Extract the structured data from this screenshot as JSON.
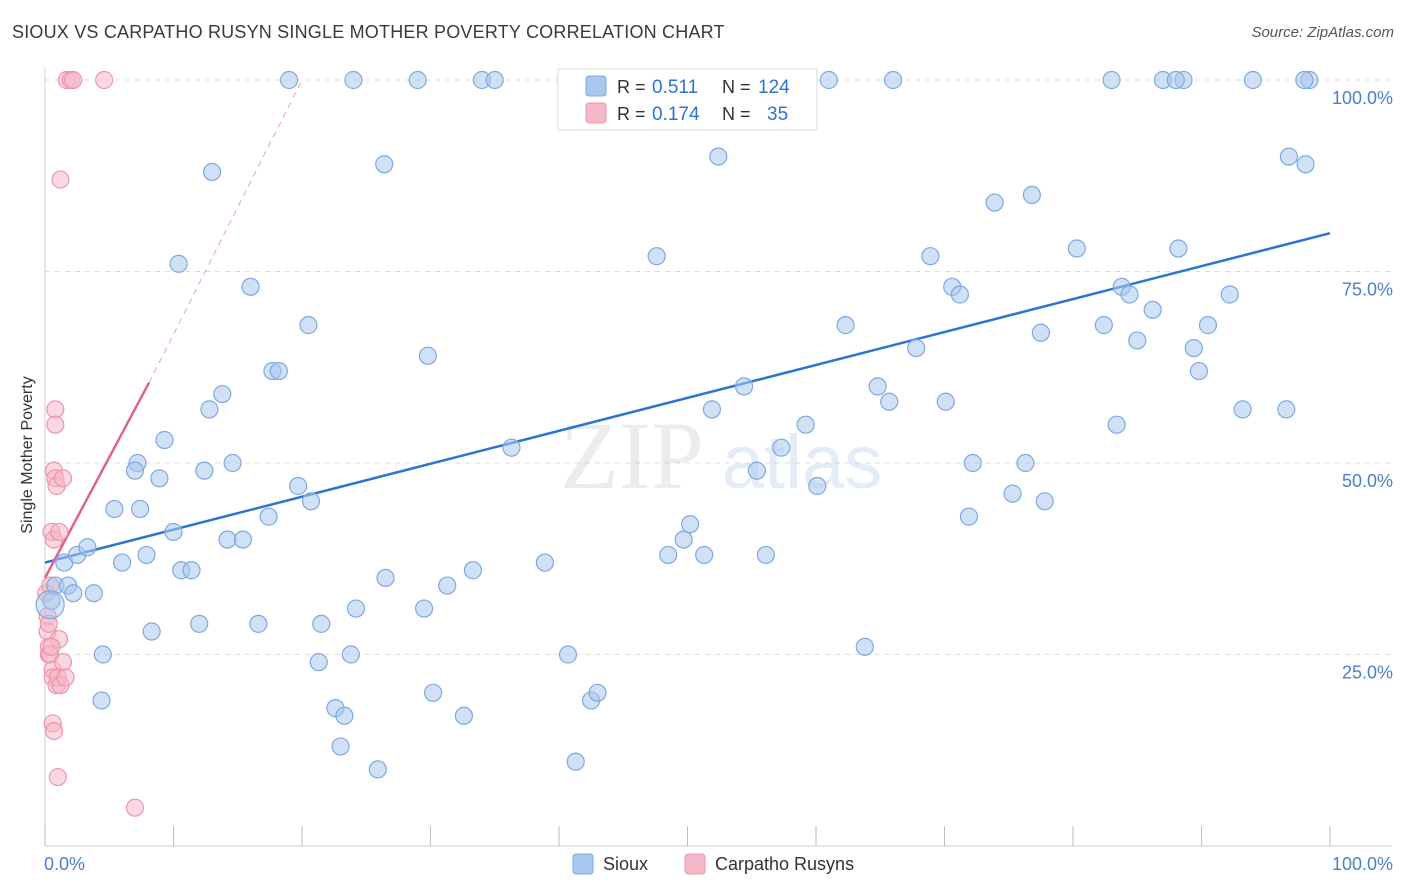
{
  "header": {
    "title": "SIOUX VS CARPATHO RUSYN SINGLE MOTHER POVERTY CORRELATION CHART",
    "source": "Source: ZipAtlas.com"
  },
  "colors": {
    "sioux_fill": "#a9c8ef",
    "sioux_stroke": "#7ea9df",
    "sioux_line": "#2d74d0",
    "rusyn_fill": "#f6b8c9",
    "rusyn_stroke": "#ee94ae",
    "rusyn_line": "#e0638c",
    "axis_label": "#4a7fc9",
    "grid": "#dcdcdc"
  },
  "legend": {
    "r_label": "R =",
    "n_label": "N =",
    "sioux_r": "0.511",
    "sioux_n": "124",
    "rusyn_r": "0.174",
    "rusyn_n": "35"
  },
  "chart_data": {
    "type": "scatter",
    "title": "SIOUX VS CARPATHO RUSYN SINGLE MOTHER POVERTY CORRELATION CHART",
    "xlabel": "",
    "ylabel": "Single Mother Poverty",
    "xlim": [
      0,
      100
    ],
    "ylim": [
      0,
      100
    ],
    "x_tick_labels": [
      "0.0%",
      "100.0%"
    ],
    "y_tick_labels": [
      "25.0%",
      "50.0%",
      "75.0%",
      "100.0%"
    ],
    "y_ticks": [
      25,
      50,
      75,
      100
    ],
    "grid": true,
    "legend_position": "top-center",
    "watermark": "ZIPatlas",
    "series": [
      {
        "name": "Sioux",
        "r": 0.511,
        "n": 124,
        "trend": {
          "x": [
            0,
            100
          ],
          "y": [
            37,
            80
          ]
        },
        "points": [
          [
            0.5,
            32
          ],
          [
            0.8,
            34
          ],
          [
            1.5,
            37
          ],
          [
            1.8,
            34
          ],
          [
            2.2,
            33
          ],
          [
            2.5,
            38
          ],
          [
            3.3,
            39
          ],
          [
            3.8,
            33
          ],
          [
            4.5,
            25
          ],
          [
            4.4,
            19
          ],
          [
            5.4,
            44
          ],
          [
            6,
            37
          ],
          [
            7.2,
            50
          ],
          [
            7,
            49
          ],
          [
            7.4,
            44
          ],
          [
            7.9,
            38
          ],
          [
            8.3,
            28
          ],
          [
            8.9,
            48
          ],
          [
            9.3,
            53
          ],
          [
            10,
            41
          ],
          [
            10.4,
            76
          ],
          [
            10.6,
            36
          ],
          [
            11.4,
            36
          ],
          [
            12,
            29
          ],
          [
            12.4,
            49
          ],
          [
            12.8,
            57
          ],
          [
            13,
            88
          ],
          [
            13.8,
            59
          ],
          [
            14.2,
            40
          ],
          [
            14.6,
            50
          ],
          [
            15.4,
            40
          ],
          [
            16,
            73
          ],
          [
            16.6,
            29
          ],
          [
            17.4,
            43
          ],
          [
            17.7,
            62
          ],
          [
            18.2,
            62
          ],
          [
            19.7,
            47
          ],
          [
            20.5,
            68
          ],
          [
            20.7,
            45
          ],
          [
            21.3,
            24
          ],
          [
            21.5,
            29
          ],
          [
            22.6,
            18
          ],
          [
            23,
            13
          ],
          [
            23.3,
            17
          ],
          [
            23.8,
            25
          ],
          [
            24.2,
            31
          ],
          [
            25.9,
            10
          ],
          [
            26.4,
            89
          ],
          [
            26.5,
            35
          ],
          [
            29.5,
            31
          ],
          [
            29.8,
            64
          ],
          [
            30.2,
            20
          ],
          [
            31.3,
            34
          ],
          [
            32.6,
            17
          ],
          [
            33.3,
            36
          ],
          [
            36.3,
            52
          ],
          [
            38.9,
            37
          ],
          [
            40.7,
            25
          ],
          [
            41.3,
            11
          ],
          [
            42.5,
            19
          ],
          [
            43,
            20
          ],
          [
            47.6,
            77
          ],
          [
            48.5,
            38
          ],
          [
            49.7,
            40
          ],
          [
            50.2,
            42
          ],
          [
            51.3,
            38
          ],
          [
            51.9,
            57
          ],
          [
            52.4,
            90
          ],
          [
            54.4,
            60
          ],
          [
            55.4,
            49
          ],
          [
            56.1,
            38
          ],
          [
            57.3,
            52
          ],
          [
            59.2,
            55
          ],
          [
            60.1,
            47
          ],
          [
            62.3,
            68
          ],
          [
            63.8,
            26
          ],
          [
            64.8,
            60
          ],
          [
            65.7,
            58
          ],
          [
            67.8,
            65
          ],
          [
            70.1,
            58
          ],
          [
            68.9,
            77
          ],
          [
            70.6,
            73
          ],
          [
            71.2,
            72
          ],
          [
            71.9,
            43
          ],
          [
            72.2,
            50
          ],
          [
            73.9,
            84
          ],
          [
            75.3,
            46
          ],
          [
            76.3,
            50
          ],
          [
            76.8,
            85
          ],
          [
            77.5,
            67
          ],
          [
            77.8,
            45
          ],
          [
            80.3,
            78
          ],
          [
            82.4,
            68
          ],
          [
            83.4,
            55
          ],
          [
            83.8,
            73
          ],
          [
            84.4,
            72
          ],
          [
            85,
            66
          ],
          [
            86.2,
            70
          ],
          [
            88.2,
            78
          ],
          [
            88.6,
            100
          ],
          [
            89.4,
            65
          ],
          [
            89.8,
            62
          ],
          [
            90.5,
            68
          ],
          [
            92.2,
            72
          ],
          [
            93.2,
            57
          ],
          [
            96.6,
            57
          ],
          [
            96.8,
            90
          ],
          [
            98.1,
            89
          ],
          [
            98.4,
            100
          ],
          [
            19,
            100
          ],
          [
            24,
            100
          ],
          [
            29,
            100
          ],
          [
            34,
            100
          ],
          [
            35,
            100
          ],
          [
            43,
            100
          ],
          [
            47,
            100
          ],
          [
            55,
            100
          ],
          [
            61,
            100
          ],
          [
            66,
            100
          ],
          [
            83,
            100
          ],
          [
            87,
            100
          ],
          [
            88,
            100
          ],
          [
            94,
            100
          ],
          [
            98,
            100
          ]
        ]
      },
      {
        "name": "Carpatho Rusyns",
        "r": 0.174,
        "n": 35,
        "trend_solid": {
          "x": [
            0,
            8.1
          ],
          "y": [
            35,
            60.5
          ]
        },
        "trend_dashed": {
          "x": [
            8.1,
            20
          ],
          "y": [
            60.5,
            100
          ]
        },
        "points": [
          [
            0.1,
            33
          ],
          [
            0.2,
            30
          ],
          [
            0.2,
            28
          ],
          [
            0.3,
            26
          ],
          [
            0.3,
            25
          ],
          [
            0.3,
            29
          ],
          [
            0.4,
            25
          ],
          [
            0.5,
            41
          ],
          [
            0.6,
            23
          ],
          [
            0.6,
            22
          ],
          [
            0.6,
            16
          ],
          [
            0.7,
            15
          ],
          [
            0.7,
            40
          ],
          [
            0.7,
            49
          ],
          [
            0.8,
            48
          ],
          [
            0.8,
            57
          ],
          [
            0.8,
            55
          ],
          [
            0.9,
            47
          ],
          [
            0.9,
            21
          ],
          [
            1,
            22
          ],
          [
            1,
            9
          ],
          [
            1.1,
            41
          ],
          [
            1.1,
            27
          ],
          [
            1.2,
            87
          ],
          [
            1.2,
            21
          ],
          [
            1.4,
            24
          ],
          [
            1.4,
            48
          ],
          [
            1.6,
            22
          ],
          [
            1.7,
            100
          ],
          [
            2,
            100
          ],
          [
            2.2,
            100
          ],
          [
            0.4,
            34
          ],
          [
            0.5,
            26
          ],
          [
            4.6,
            100
          ],
          [
            7,
            5
          ]
        ]
      }
    ]
  }
}
